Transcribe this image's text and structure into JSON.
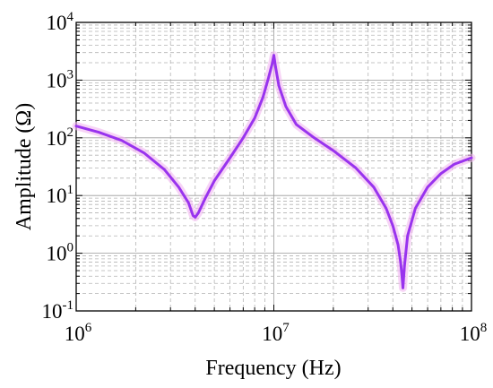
{
  "chart_data": {
    "type": "line",
    "title": "",
    "xlabel": "Frequency (Hz)",
    "ylabel": "Amplitude (Ω)",
    "x_scale": "log",
    "y_scale": "log",
    "xlim": [
      1000000,
      100000000
    ],
    "ylim": [
      0.1,
      10000
    ],
    "grid": true,
    "legend": "none",
    "x_ticks": [
      {
        "base": "10",
        "exp": "6"
      },
      {
        "base": "10",
        "exp": "7"
      },
      {
        "base": "10",
        "exp": "8"
      }
    ],
    "y_ticks": [
      {
        "base": "10",
        "exp": "-1"
      },
      {
        "base": "10",
        "exp": "0"
      },
      {
        "base": "10",
        "exp": "1"
      },
      {
        "base": "10",
        "exp": "2"
      },
      {
        "base": "10",
        "exp": "3"
      },
      {
        "base": "10",
        "exp": "4"
      }
    ],
    "series": [
      {
        "color": "#9933ee",
        "x": [
          1000000,
          1300000,
          1700000,
          2200000,
          2800000,
          3300000,
          3700000,
          3900000,
          4000000,
          4150000,
          4500000,
          5000000,
          6000000,
          7000000,
          8000000,
          8800000,
          9400000,
          9800000,
          10000000,
          10200000,
          10600000,
          11500000,
          13000000,
          16000000,
          20000000,
          26000000,
          32000000,
          37000000,
          40000000,
          42500000,
          43800000,
          44500000,
          45000000,
          45800000,
          47500000,
          52000000,
          60000000,
          70000000,
          82000000,
          100000000
        ],
        "y": [
          160,
          125,
          90,
          55,
          28,
          14,
          7.5,
          4.5,
          4.2,
          5.0,
          9,
          18,
          45,
          100,
          220,
          500,
          1100,
          1900,
          2700,
          1700,
          800,
          350,
          170,
          100,
          60,
          30,
          14,
          6,
          3,
          1.4,
          0.7,
          0.4,
          0.25,
          0.6,
          2,
          6,
          14,
          24,
          35,
          45
        ]
      }
    ]
  }
}
